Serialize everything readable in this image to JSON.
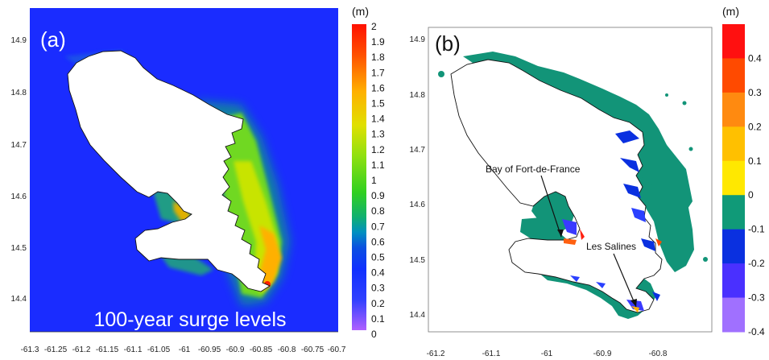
{
  "panel_a": {
    "label": "(a)",
    "banner": "100-year surge levels",
    "x_ticks": [
      "-61.3",
      "-61.25",
      "-61.2",
      "-61.15",
      "-61.1",
      "-61.05",
      "-61",
      "-60.95",
      "-60.9",
      "-60.85",
      "-60.8",
      "-60.75",
      "-60.7"
    ],
    "y_ticks": [
      "14.9",
      "14.8",
      "14.7",
      "14.6",
      "14.5",
      "14.4"
    ],
    "colorbar": {
      "unit": "(m)",
      "ticks": [
        "2",
        "1.9",
        "1.8",
        "1.7",
        "1.6",
        "1.5",
        "1.4",
        "1.3",
        "1.2",
        "1.1",
        "1",
        "0.9",
        "0.8",
        "0.7",
        "0.6",
        "0.5",
        "0.4",
        "0.3",
        "0.2",
        "0.1",
        "0"
      ],
      "colors": [
        "#b060ff",
        "#3040ff",
        "#1030ff",
        "#0a50e0",
        "#0090c0",
        "#10b070",
        "#30d020",
        "#90e010",
        "#e0e000",
        "#ffb000",
        "#ff5000",
        "#ff1000"
      ]
    }
  },
  "panel_b": {
    "label": "(b)",
    "x_ticks": [
      "-61.2",
      "-61.1",
      "-61",
      "-60.9",
      "-60.8"
    ],
    "y_ticks": [
      "14.9",
      "14.8",
      "14.7",
      "14.6",
      "14.5",
      "14.4"
    ],
    "annotations": {
      "bay": "Bay of Fort-de-France",
      "salines": "Les Salines"
    },
    "colorbar": {
      "unit": "(m)",
      "ticks": [
        "0.4",
        "0.3",
        "0.2",
        "0.1",
        "0",
        "-0.1",
        "-0.2",
        "-0.3",
        "-0.4"
      ],
      "bins": [
        "#ff1010",
        "#ff4a00",
        "#ff8a10",
        "#ffc000",
        "#ffe800",
        "#109a78",
        "#0a30e0",
        "#4a30ff",
        "#a070ff"
      ]
    }
  }
}
